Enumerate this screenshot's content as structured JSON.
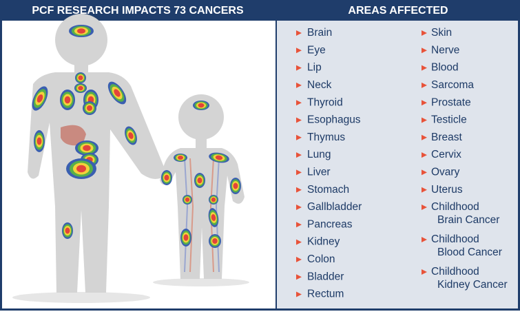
{
  "header": {
    "left_title": "PCF RESEARCH IMPACTS 73 CANCERS",
    "right_title": "AREAS AFFECTED"
  },
  "list": {
    "column_1": [
      "Brain",
      "Eye",
      "Lip",
      "Neck",
      "Thyroid",
      "Esophagus",
      "Thymus",
      "Lung",
      "Liver",
      "Stomach",
      "Gallbladder",
      "Pancreas",
      "Kidney",
      "Colon",
      "Bladder",
      "Rectum"
    ],
    "column_2": [
      "Skin",
      "Nerve",
      "Blood",
      "Sarcoma",
      "Prostate",
      "Testicle",
      "Breast",
      "Cervix",
      "Ovary",
      "Uterus",
      [
        "Childhood",
        "Brain Cancer"
      ],
      [
        "Childhood",
        "Blood Cancer"
      ],
      [
        "Childhood",
        "Kidney Cancer"
      ]
    ]
  }
}
